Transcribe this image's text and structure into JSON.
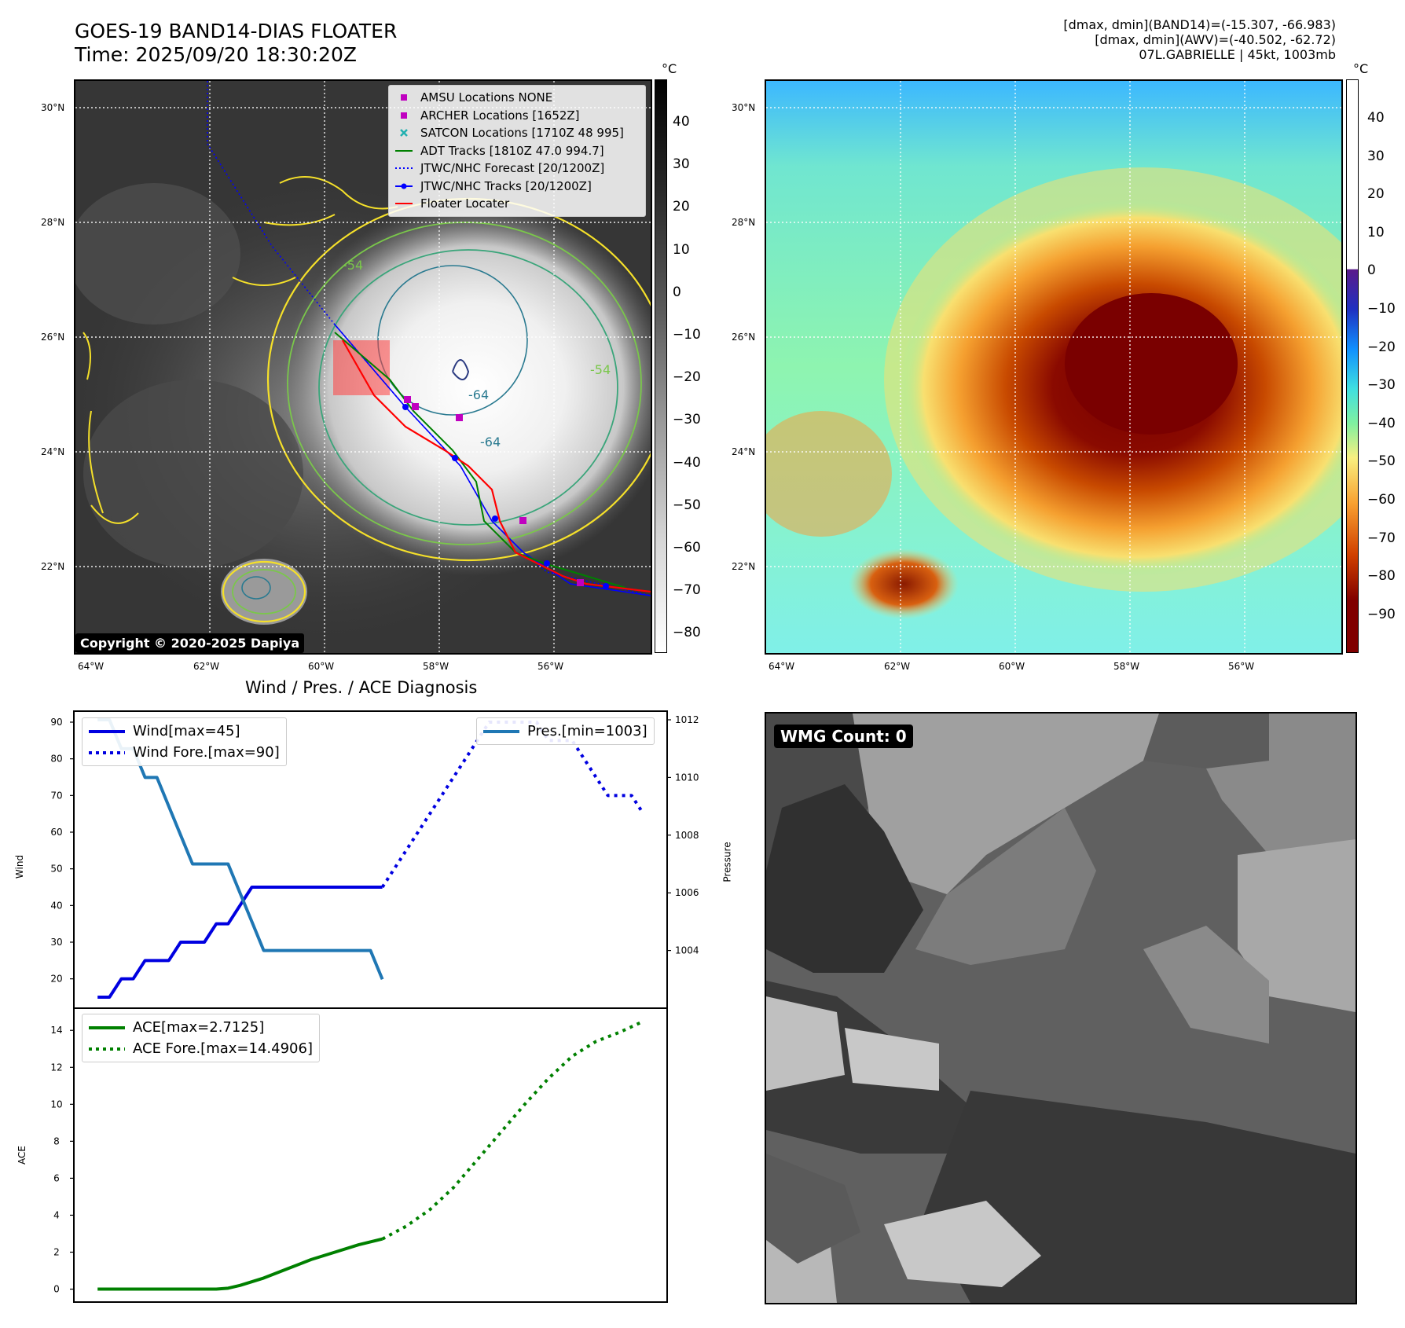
{
  "header": {
    "title_line1": "GOES-19 BAND14-DIAS FLOATER",
    "title_line2": "Time: 2025/09/20 18:30:20Z",
    "info_line1": "[dmax, dmin](BAND14)=(-15.307, -66.983)",
    "info_line2": "[dmax, dmin](AWV)=(-40.502, -62.72)",
    "info_line3": "07L.GABRIELLE | 45kt, 1003mb"
  },
  "ir_map": {
    "lat_labels": [
      "30°N",
      "28°N",
      "26°N",
      "24°N",
      "22°N"
    ],
    "lon_labels": [
      "64°W",
      "62°W",
      "60°W",
      "58°W",
      "56°W"
    ],
    "copyright": "Copyright © 2020-2025 Dapiya",
    "contour_labels": [
      "-54",
      "-64",
      "-64",
      "-54"
    ],
    "legend": [
      {
        "label": "AMSU Locations NONE",
        "symbol": "square",
        "color": "#c000c0"
      },
      {
        "label": "ARCHER Locations [1652Z]",
        "symbol": "square",
        "color": "#c000c0"
      },
      {
        "label": "SATCON Locations [1710Z 48 995]",
        "symbol": "x",
        "color": "#20b0b0"
      },
      {
        "label": "ADT Tracks [1810Z 47.0 994.7]",
        "symbol": "line",
        "color": "#008000"
      },
      {
        "label": "JTWC/NHC Forecast [20/1200Z]",
        "symbol": "dotted",
        "color": "#0000ff"
      },
      {
        "label": "JTWC/NHC Tracks [20/1200Z]",
        "symbol": "line-dot",
        "color": "#0000ff"
      },
      {
        "label": "Floater Locater",
        "symbol": "line",
        "color": "#ff0000"
      }
    ],
    "colorbar_unit": "°C",
    "colorbar_ticks": [
      "40",
      "30",
      "20",
      "10",
      "0",
      "−10",
      "−20",
      "−30",
      "−40",
      "−50",
      "−60",
      "−70",
      "−80"
    ]
  },
  "awv_map": {
    "lat_labels": [
      "30°N",
      "28°N",
      "26°N",
      "24°N",
      "22°N"
    ],
    "lon_labels": [
      "64°W",
      "62°W",
      "60°W",
      "58°W",
      "56°W"
    ],
    "colorbar_unit": "°C",
    "colorbar_ticks": [
      "40",
      "30",
      "20",
      "10",
      "0",
      "−10",
      "−20",
      "−30",
      "−40",
      "−50",
      "−60",
      "−70",
      "−80",
      "−90"
    ]
  },
  "wmg": {
    "badge": "WMG Count: 0"
  },
  "chart_data": [
    {
      "type": "line",
      "title": "Wind / Pres. / ACE Diagnosis",
      "ylabel": "Wind",
      "ylabel_right": "Pressure",
      "ylim": [
        12,
        93
      ],
      "ylim_right": [
        1002.0,
        1012.3
      ],
      "yticks": [
        20,
        30,
        40,
        50,
        60,
        70,
        80,
        90
      ],
      "yticks_right": [
        1004,
        1006,
        1008,
        1010,
        1012
      ],
      "x": [
        0,
        1,
        2,
        3,
        4,
        5,
        6,
        7,
        8,
        9,
        10,
        11,
        12,
        13,
        14,
        15,
        16,
        17,
        18,
        19,
        20,
        21,
        22,
        23,
        24,
        25,
        26,
        27,
        28,
        29,
        30,
        31,
        32,
        33,
        34,
        35,
        36,
        37,
        38,
        39,
        40,
        41,
        42,
        43,
        44,
        45,
        46
      ],
      "series": [
        {
          "name": "Wind[max=45]",
          "style": "solid",
          "color": "#0000e0",
          "axis": "left",
          "x": [
            0,
            1,
            2,
            3,
            4,
            5,
            6,
            7,
            8,
            9,
            10,
            11,
            12,
            13,
            14,
            15,
            16,
            17,
            18,
            19,
            20,
            21,
            22,
            23,
            24
          ],
          "values": [
            15,
            15,
            20,
            20,
            25,
            25,
            25,
            30,
            30,
            30,
            35,
            35,
            40,
            45,
            45,
            45,
            45,
            45,
            45,
            45,
            45,
            45,
            45,
            45,
            45
          ]
        },
        {
          "name": "Wind Fore.[max=90]",
          "style": "dotted",
          "color": "#0000e0",
          "axis": "left",
          "x": [
            24,
            25,
            26,
            27,
            28,
            29,
            30,
            31,
            32,
            33,
            34,
            35,
            36,
            37,
            38,
            39,
            40,
            41,
            42,
            43,
            44,
            45,
            46
          ],
          "values": [
            45,
            50,
            55,
            60,
            65,
            70,
            75,
            80,
            85,
            90,
            90,
            90,
            90,
            90,
            85,
            85,
            85,
            80,
            75,
            70,
            70,
            70,
            65
          ]
        },
        {
          "name": "Pres.[min=1003]",
          "style": "solid",
          "color": "#1f77b4",
          "axis": "right",
          "x": [
            0,
            1,
            2,
            3,
            4,
            5,
            6,
            7,
            8,
            9,
            10,
            11,
            12,
            13,
            14,
            15,
            16,
            17,
            18,
            19,
            20,
            21,
            22,
            23,
            24
          ],
          "values": [
            1012,
            1012,
            1011,
            1011,
            1010,
            1010,
            1009,
            1008,
            1007,
            1007,
            1007,
            1007,
            1006,
            1005,
            1004,
            1004,
            1004,
            1004,
            1004,
            1004,
            1004,
            1004,
            1004,
            1004,
            1003
          ]
        }
      ]
    },
    {
      "type": "line",
      "ylabel": "ACE",
      "ylim": [
        -0.7,
        15.2
      ],
      "yticks": [
        0,
        2,
        4,
        6,
        8,
        10,
        12,
        14
      ],
      "series": [
        {
          "name": "ACE[max=2.7125]",
          "style": "solid",
          "color": "#008000",
          "x": [
            0,
            2,
            4,
            6,
            8,
            10,
            11,
            12,
            14,
            16,
            18,
            20,
            22,
            24
          ],
          "values": [
            0,
            0,
            0,
            0,
            0,
            0,
            0.05,
            0.2,
            0.6,
            1.1,
            1.6,
            2.0,
            2.4,
            2.7125
          ]
        },
        {
          "name": "ACE Fore.[max=14.4906]",
          "style": "dotted",
          "color": "#008000",
          "x": [
            24,
            26,
            28,
            30,
            32,
            34,
            36,
            38,
            40,
            42,
            44,
            46
          ],
          "values": [
            2.7125,
            3.4,
            4.3,
            5.5,
            7.0,
            8.5,
            10.0,
            11.4,
            12.6,
            13.4,
            13.9,
            14.4906
          ]
        }
      ]
    }
  ]
}
